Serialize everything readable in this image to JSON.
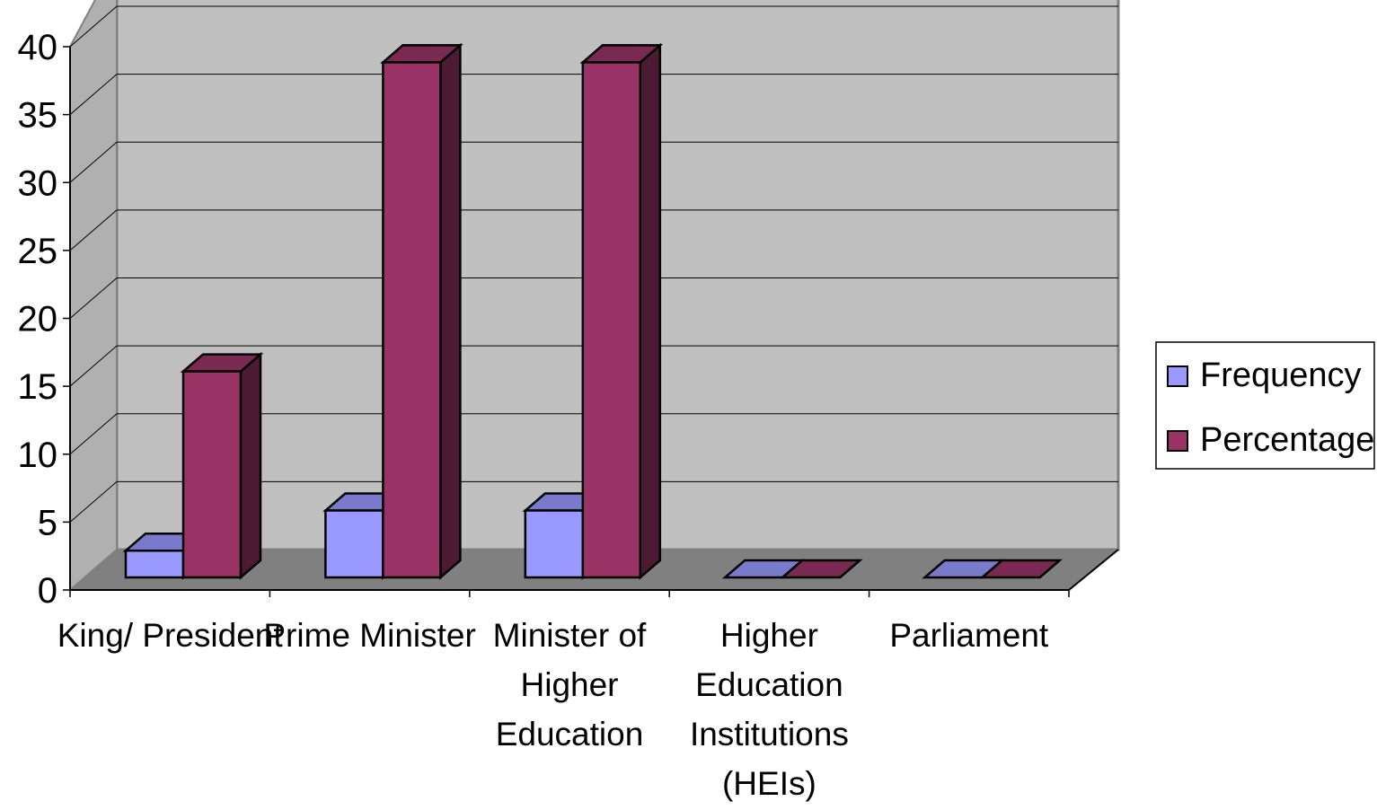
{
  "chart_data": {
    "type": "bar",
    "categories": [
      [
        "King/ President"
      ],
      [
        "Prime Minister"
      ],
      [
        "Minister of",
        "Higher",
        "Education"
      ],
      [
        "Higher",
        "Education",
        "Institutions",
        "(HEIs)"
      ],
      [
        "Parliament"
      ]
    ],
    "series": [
      {
        "name": "Frequency",
        "values": [
          2,
          5,
          5,
          0,
          0
        ]
      },
      {
        "name": "Percentage",
        "values": [
          15.4,
          38.5,
          38.5,
          0,
          0
        ]
      }
    ],
    "ylim": [
      0,
      40
    ],
    "yticks": [
      "0",
      "5",
      "10",
      "15",
      "20",
      "25",
      "30",
      "35",
      "40"
    ],
    "grid": true,
    "legend_position": "right",
    "three_d": true,
    "colors": {
      "Frequency": "#9999ff",
      "Percentage": "#993366",
      "Frequency_side": "#4d4d99",
      "Percentage_side": "#4d1a33",
      "Frequency_top": "#7a7acc",
      "Percentage_top": "#7a2952",
      "wall": "#c0c0c0",
      "floor": "#808080",
      "grid": "#000000"
    }
  }
}
